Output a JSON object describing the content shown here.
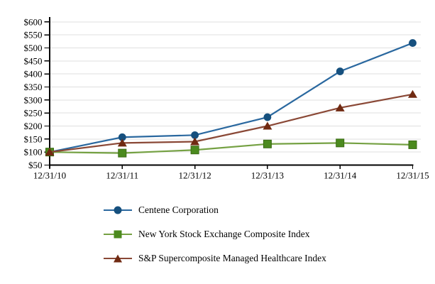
{
  "chart_data": {
    "type": "line",
    "title": "",
    "grid": "horizontal",
    "legend_position": "bottom-left",
    "axis_color": "#000000",
    "gridline_color": "#dfdfdf",
    "x_axis": {
      "categories": [
        "12/31/10",
        "12/31/11",
        "12/31/12",
        "12/31/13",
        "12/31/14",
        "12/31/15"
      ]
    },
    "y_axis": {
      "min": 50,
      "max": 600,
      "step": 50,
      "tick_labels": [
        "$600",
        "$550",
        "$500",
        "$450",
        "$400",
        "$350",
        "$300",
        "$250",
        "$200",
        "$150",
        "$100",
        "$50"
      ]
    },
    "series": [
      {
        "name": "Centene Corporation",
        "marker": "circle",
        "line_color": "#2a689f",
        "marker_color": "#16507e",
        "values": [
          100,
          157,
          165,
          234,
          410,
          519
        ]
      },
      {
        "name": "New York Stock Exchange Composite Index",
        "marker": "square",
        "line_color": "#75a143",
        "marker_color": "#4b8a1e",
        "values": [
          100,
          96,
          108,
          131,
          135,
          128
        ]
      },
      {
        "name": "S&P Supercomposite Managed Healthcare Index",
        "marker": "triangle",
        "line_color": "#8a4836",
        "marker_color": "#702a12",
        "values": [
          100,
          135,
          140,
          200,
          270,
          322
        ]
      }
    ]
  }
}
